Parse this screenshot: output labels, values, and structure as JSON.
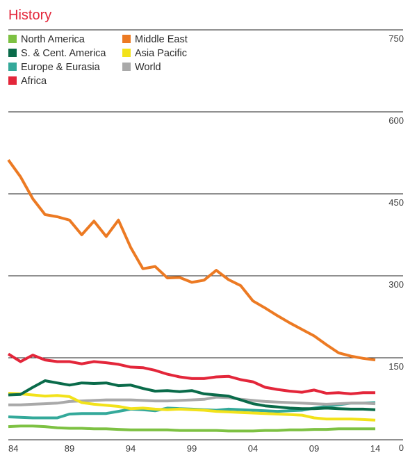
{
  "chart_data": {
    "type": "line",
    "title": "History",
    "xlabel": "",
    "ylabel": "",
    "ylim": [
      0,
      750
    ],
    "y_ticks": [
      0,
      150,
      300,
      450,
      600,
      750
    ],
    "x": [
      1984,
      1985,
      1986,
      1987,
      1988,
      1989,
      1990,
      1991,
      1992,
      1993,
      1994,
      1995,
      1996,
      1997,
      1998,
      1999,
      2000,
      2001,
      2002,
      2003,
      2004,
      2005,
      2006,
      2007,
      2008,
      2009,
      2010,
      2011,
      2012,
      2013,
      2014
    ],
    "x_ticks": [
      {
        "value": 1984,
        "label": "84"
      },
      {
        "value": 1989,
        "label": "89"
      },
      {
        "value": 1994,
        "label": "94"
      },
      {
        "value": 1999,
        "label": "99"
      },
      {
        "value": 2004,
        "label": "04"
      },
      {
        "value": 2009,
        "label": "09"
      },
      {
        "value": 2014,
        "label": "14"
      }
    ],
    "legend_position": "top-left",
    "series": [
      {
        "name": "North America",
        "color": "#7dc142",
        "values": [
          24,
          25,
          25,
          24,
          22,
          21,
          21,
          20,
          20,
          19,
          18,
          18,
          18,
          18,
          17,
          17,
          17,
          17,
          16,
          16,
          16,
          17,
          17,
          18,
          18,
          19,
          19,
          20,
          20,
          20,
          20
        ]
      },
      {
        "name": "S. & Cent. America",
        "color": "#0a6b4a",
        "values": [
          82,
          83,
          96,
          108,
          104,
          100,
          104,
          103,
          104,
          99,
          100,
          94,
          89,
          90,
          88,
          90,
          84,
          82,
          80,
          73,
          66,
          62,
          60,
          58,
          57,
          57,
          58,
          57,
          56,
          56,
          55
        ]
      },
      {
        "name": "Europe & Eurasia",
        "color": "#34a99a",
        "values": [
          42,
          41,
          40,
          40,
          40,
          47,
          48,
          48,
          48,
          52,
          56,
          55,
          53,
          58,
          57,
          56,
          55,
          54,
          56,
          55,
          54,
          53,
          52,
          53,
          54,
          58,
          61,
          64,
          67,
          67,
          68
        ]
      },
      {
        "name": "Africa",
        "color": "#e3263a",
        "values": [
          157,
          143,
          155,
          146,
          143,
          143,
          139,
          143,
          141,
          138,
          133,
          132,
          127,
          120,
          115,
          112,
          112,
          115,
          116,
          110,
          106,
          96,
          92,
          89,
          87,
          91,
          85,
          86,
          84,
          86,
          86
        ]
      },
      {
        "name": "Middle East",
        "color": "#ec7a23",
        "values": [
          512,
          481,
          441,
          412,
          408,
          402,
          375,
          400,
          372,
          402,
          352,
          313,
          317,
          296,
          297,
          288,
          292,
          310,
          293,
          282,
          254,
          241,
          227,
          214,
          202,
          190,
          174,
          159,
          153,
          149,
          146
        ]
      },
      {
        "name": "Asia Pacific",
        "color": "#f2e21a",
        "values": [
          85,
          84,
          82,
          80,
          81,
          79,
          68,
          65,
          63,
          61,
          57,
          58,
          56,
          55,
          56,
          55,
          54,
          52,
          51,
          50,
          49,
          48,
          47,
          46,
          45,
          40,
          38,
          38,
          38,
          37,
          36
        ]
      },
      {
        "name": "World",
        "color": "#a9a9a9",
        "values": [
          64,
          64,
          65,
          66,
          67,
          70,
          71,
          72,
          73,
          73,
          73,
          72,
          71,
          71,
          72,
          73,
          74,
          78,
          77,
          74,
          72,
          70,
          69,
          68,
          67,
          66,
          65,
          66,
          67,
          67,
          66
        ]
      }
    ]
  }
}
